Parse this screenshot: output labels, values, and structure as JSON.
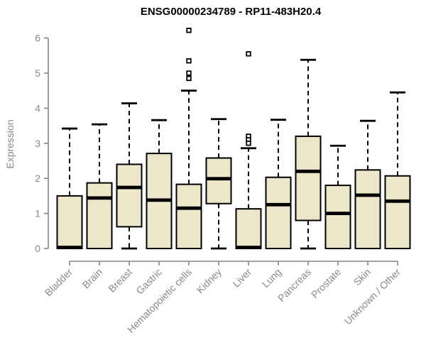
{
  "chart_data": {
    "type": "boxplot",
    "title": "ENSG00000234789 - RP11-483H20.4",
    "xlabel": "",
    "ylabel": "Expression",
    "ylim": [
      0,
      6
    ],
    "yticks": [
      0,
      1,
      2,
      3,
      4,
      5,
      6
    ],
    "grid": false,
    "legend": false,
    "categories": [
      "Bladder",
      "Brain",
      "Breast",
      "Gastric",
      "Hematopoietic cells",
      "Kidney",
      "Liver",
      "Lung",
      "Pancreas",
      "Prostate",
      "Skin",
      "Unknown / Other"
    ],
    "series": [
      {
        "category": "Bladder",
        "whisker_low": 0,
        "q1": 0,
        "median": 0.03,
        "q3": 1.5,
        "whisker_high": 3.42,
        "outliers": []
      },
      {
        "category": "Brain",
        "whisker_low": 0,
        "q1": 0,
        "median": 1.44,
        "q3": 1.87,
        "whisker_high": 3.54,
        "outliers": []
      },
      {
        "category": "Breast",
        "whisker_low": 0,
        "q1": 0.62,
        "median": 1.74,
        "q3": 2.4,
        "whisker_high": 4.14,
        "outliers": []
      },
      {
        "category": "Gastric",
        "whisker_low": 0,
        "q1": 0,
        "median": 1.38,
        "q3": 2.71,
        "whisker_high": 3.66,
        "outliers": []
      },
      {
        "category": "Hematopoietic cells",
        "whisker_low": 0,
        "q1": 0,
        "median": 1.15,
        "q3": 1.83,
        "whisker_high": 4.5,
        "outliers": [
          6.22,
          5.35,
          5.0,
          4.85
        ]
      },
      {
        "category": "Kidney",
        "whisker_low": 0,
        "q1": 1.28,
        "median": 1.99,
        "q3": 2.58,
        "whisker_high": 3.69,
        "outliers": []
      },
      {
        "category": "Liver",
        "whisker_low": 0,
        "q1": 0,
        "median": 0.03,
        "q3": 1.13,
        "whisker_high": 2.86,
        "outliers": [
          5.55,
          3.2,
          3.1,
          3.0
        ]
      },
      {
        "category": "Lung",
        "whisker_low": 0,
        "q1": 0,
        "median": 1.25,
        "q3": 2.03,
        "whisker_high": 3.67,
        "outliers": []
      },
      {
        "category": "Pancreas",
        "whisker_low": 0,
        "q1": 0.8,
        "median": 2.2,
        "q3": 3.2,
        "whisker_high": 5.38,
        "outliers": []
      },
      {
        "category": "Prostate",
        "whisker_low": 0,
        "q1": 0,
        "median": 1.0,
        "q3": 1.8,
        "whisker_high": 2.93,
        "outliers": []
      },
      {
        "category": "Skin",
        "whisker_low": 0,
        "q1": 0,
        "median": 1.52,
        "q3": 2.24,
        "whisker_high": 3.64,
        "outliers": []
      },
      {
        "category": "Unknown / Other",
        "whisker_low": 0,
        "q1": 0,
        "median": 1.35,
        "q3": 2.07,
        "whisker_high": 4.45,
        "outliers": []
      }
    ],
    "colors": {
      "box_fill": "#ECE7CB",
      "box_border": "#000000",
      "median": "#000000",
      "whisker": "#000000",
      "axis": "#858585",
      "tick_label": "#8a8a8a",
      "title": "#000000",
      "background": "#ffffff"
    }
  }
}
